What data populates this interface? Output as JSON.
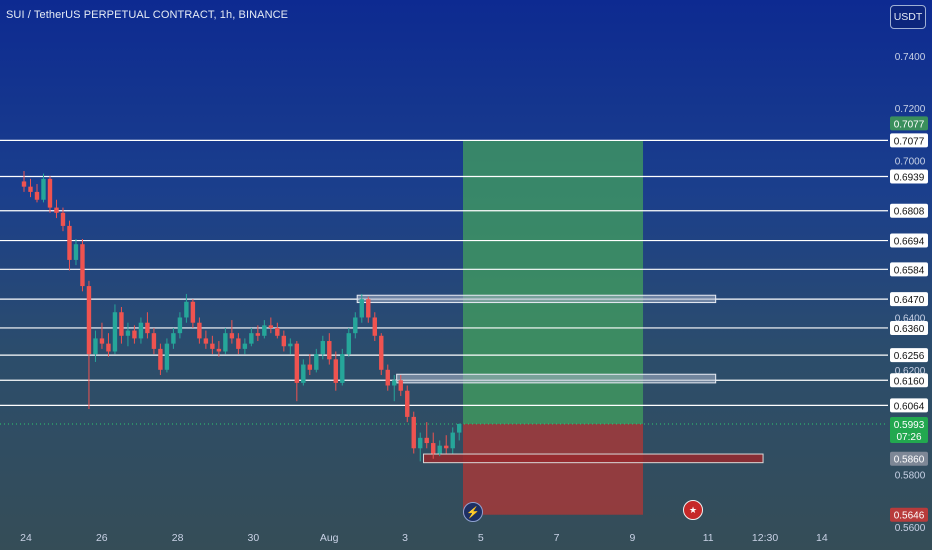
{
  "header": {
    "title": "SUI / TetherUS PERPETUAL CONTRACT, 1h, BINANCE",
    "currency_button": "USDT"
  },
  "colors": {
    "up": "#26a69a",
    "down": "#ef5350",
    "profit_zone": "#43a05d",
    "loss_zone": "#a33a3a",
    "level_line": "#ffffff",
    "current_price_tag": "#22a84f"
  },
  "icons": [
    "lightning-icon",
    "us-flag-icon"
  ],
  "chart_data": {
    "type": "candlestick",
    "title": "SUI / TetherUS PERPETUAL CONTRACT, 1h, BINANCE",
    "xlabel": "",
    "ylabel": "",
    "ylim": [
      0.558,
      0.756
    ],
    "x_ticks": [
      "24",
      "26",
      "28",
      "30",
      "Aug",
      "3",
      "5",
      "7",
      "9",
      "11",
      "12:30",
      "14"
    ],
    "y_ticks": [
      "0.7400",
      "0.7200",
      "0.7000",
      "0.6400",
      "0.6200",
      "0.5800",
      "0.5600"
    ],
    "levels": [
      0.7077,
      0.6939,
      0.6808,
      0.6694,
      0.6584,
      0.647,
      0.636,
      0.6256,
      0.616,
      0.6064
    ],
    "price_labels": [
      {
        "value": 0.7077,
        "text": "0.7077",
        "style": "highlight"
      },
      {
        "value": 0.5993,
        "text": "0.5993",
        "sub": "07:26",
        "style": "current"
      },
      {
        "value": 0.586,
        "text": "0.5860",
        "style": "neutral"
      },
      {
        "value": 0.5646,
        "text": "0.5646",
        "style": "loss"
      }
    ],
    "current_price": 0.5993,
    "position": {
      "entry": 0.5993,
      "take_profit": 0.7077,
      "stop_loss": 0.5646,
      "start": "Aug 4 14:00",
      "end": "Aug 9 08:00"
    },
    "zones": [
      {
        "top": 0.6485,
        "bottom": 0.6457,
        "start": "Aug 1 19:00",
        "end": "Aug 11 06:00",
        "color": "gray"
      },
      {
        "top": 0.6183,
        "bottom": 0.615,
        "start": "Aug 2 20:00",
        "end": "Aug 11 06:00",
        "color": "gray"
      },
      {
        "top": 0.5878,
        "bottom": 0.5845,
        "start": "Aug 3 13:00",
        "end": "Aug 12 12:00",
        "color": "red"
      }
    ],
    "series": [
      {
        "values": [
          [
            0.692,
            0.696,
            0.688,
            0.69
          ],
          [
            0.69,
            0.693,
            0.686,
            0.688
          ],
          [
            0.688,
            0.691,
            0.684,
            0.685
          ],
          [
            0.685,
            0.695,
            0.684,
            0.693
          ],
          [
            0.693,
            0.694,
            0.68,
            0.682
          ],
          [
            0.682,
            0.685,
            0.678,
            0.68
          ],
          [
            0.68,
            0.682,
            0.673,
            0.675
          ],
          [
            0.675,
            0.677,
            0.658,
            0.662
          ],
          [
            0.662,
            0.67,
            0.66,
            0.668
          ],
          [
            0.668,
            0.67,
            0.65,
            0.652
          ],
          [
            0.652,
            0.654,
            0.605,
            0.626
          ],
          [
            0.626,
            0.635,
            0.623,
            0.632
          ],
          [
            0.632,
            0.638,
            0.628,
            0.63
          ],
          [
            0.63,
            0.634,
            0.625,
            0.627
          ],
          [
            0.627,
            0.645,
            0.626,
            0.642
          ],
          [
            0.642,
            0.644,
            0.63,
            0.633
          ],
          [
            0.633,
            0.638,
            0.629,
            0.635
          ],
          [
            0.635,
            0.637,
            0.63,
            0.632
          ],
          [
            0.632,
            0.64,
            0.63,
            0.638
          ],
          [
            0.638,
            0.642,
            0.632,
            0.634
          ],
          [
            0.634,
            0.636,
            0.626,
            0.628
          ],
          [
            0.628,
            0.63,
            0.618,
            0.62
          ],
          [
            0.62,
            0.632,
            0.619,
            0.63
          ],
          [
            0.63,
            0.636,
            0.628,
            0.634
          ],
          [
            0.634,
            0.642,
            0.632,
            0.64
          ],
          [
            0.64,
            0.649,
            0.638,
            0.646
          ],
          [
            0.646,
            0.647,
            0.636,
            0.638
          ],
          [
            0.638,
            0.64,
            0.63,
            0.632
          ],
          [
            0.632,
            0.635,
            0.628,
            0.63
          ],
          [
            0.63,
            0.633,
            0.626,
            0.628
          ],
          [
            0.628,
            0.631,
            0.625,
            0.627
          ],
          [
            0.627,
            0.636,
            0.626,
            0.634
          ],
          [
            0.634,
            0.639,
            0.63,
            0.632
          ],
          [
            0.632,
            0.634,
            0.626,
            0.628
          ],
          [
            0.628,
            0.632,
            0.626,
            0.63
          ],
          [
            0.63,
            0.636,
            0.629,
            0.634
          ],
          [
            0.634,
            0.637,
            0.631,
            0.633
          ],
          [
            0.633,
            0.639,
            0.632,
            0.637
          ],
          [
            0.637,
            0.64,
            0.634,
            0.636
          ],
          [
            0.636,
            0.638,
            0.632,
            0.633
          ],
          [
            0.633,
            0.635,
            0.627,
            0.629
          ],
          [
            0.629,
            0.632,
            0.626,
            0.63
          ],
          [
            0.63,
            0.631,
            0.608,
            0.615
          ],
          [
            0.615,
            0.624,
            0.614,
            0.622
          ],
          [
            0.622,
            0.626,
            0.618,
            0.62
          ],
          [
            0.62,
            0.628,
            0.619,
            0.626
          ],
          [
            0.626,
            0.633,
            0.624,
            0.631
          ],
          [
            0.631,
            0.634,
            0.622,
            0.624
          ],
          [
            0.624,
            0.627,
            0.612,
            0.615
          ],
          [
            0.615,
            0.628,
            0.614,
            0.626
          ],
          [
            0.626,
            0.636,
            0.625,
            0.634
          ],
          [
            0.634,
            0.642,
            0.632,
            0.64
          ],
          [
            0.64,
            0.649,
            0.638,
            0.647
          ],
          [
            0.647,
            0.648,
            0.638,
            0.64
          ],
          [
            0.64,
            0.642,
            0.631,
            0.633
          ],
          [
            0.633,
            0.634,
            0.618,
            0.62
          ],
          [
            0.62,
            0.622,
            0.612,
            0.614
          ],
          [
            0.614,
            0.618,
            0.608,
            0.616
          ],
          [
            0.616,
            0.618,
            0.61,
            0.612
          ],
          [
            0.612,
            0.614,
            0.6,
            0.602
          ],
          [
            0.602,
            0.604,
            0.588,
            0.59
          ],
          [
            0.59,
            0.596,
            0.585,
            0.594
          ],
          [
            0.594,
            0.6,
            0.59,
            0.592
          ],
          [
            0.592,
            0.596,
            0.586,
            0.588
          ],
          [
            0.588,
            0.593,
            0.587,
            0.591
          ],
          [
            0.591,
            0.595,
            0.588,
            0.59
          ],
          [
            0.59,
            0.598,
            0.588,
            0.596
          ],
          [
            0.596,
            0.5995,
            0.593,
            0.5993
          ]
        ]
      }
    ]
  }
}
